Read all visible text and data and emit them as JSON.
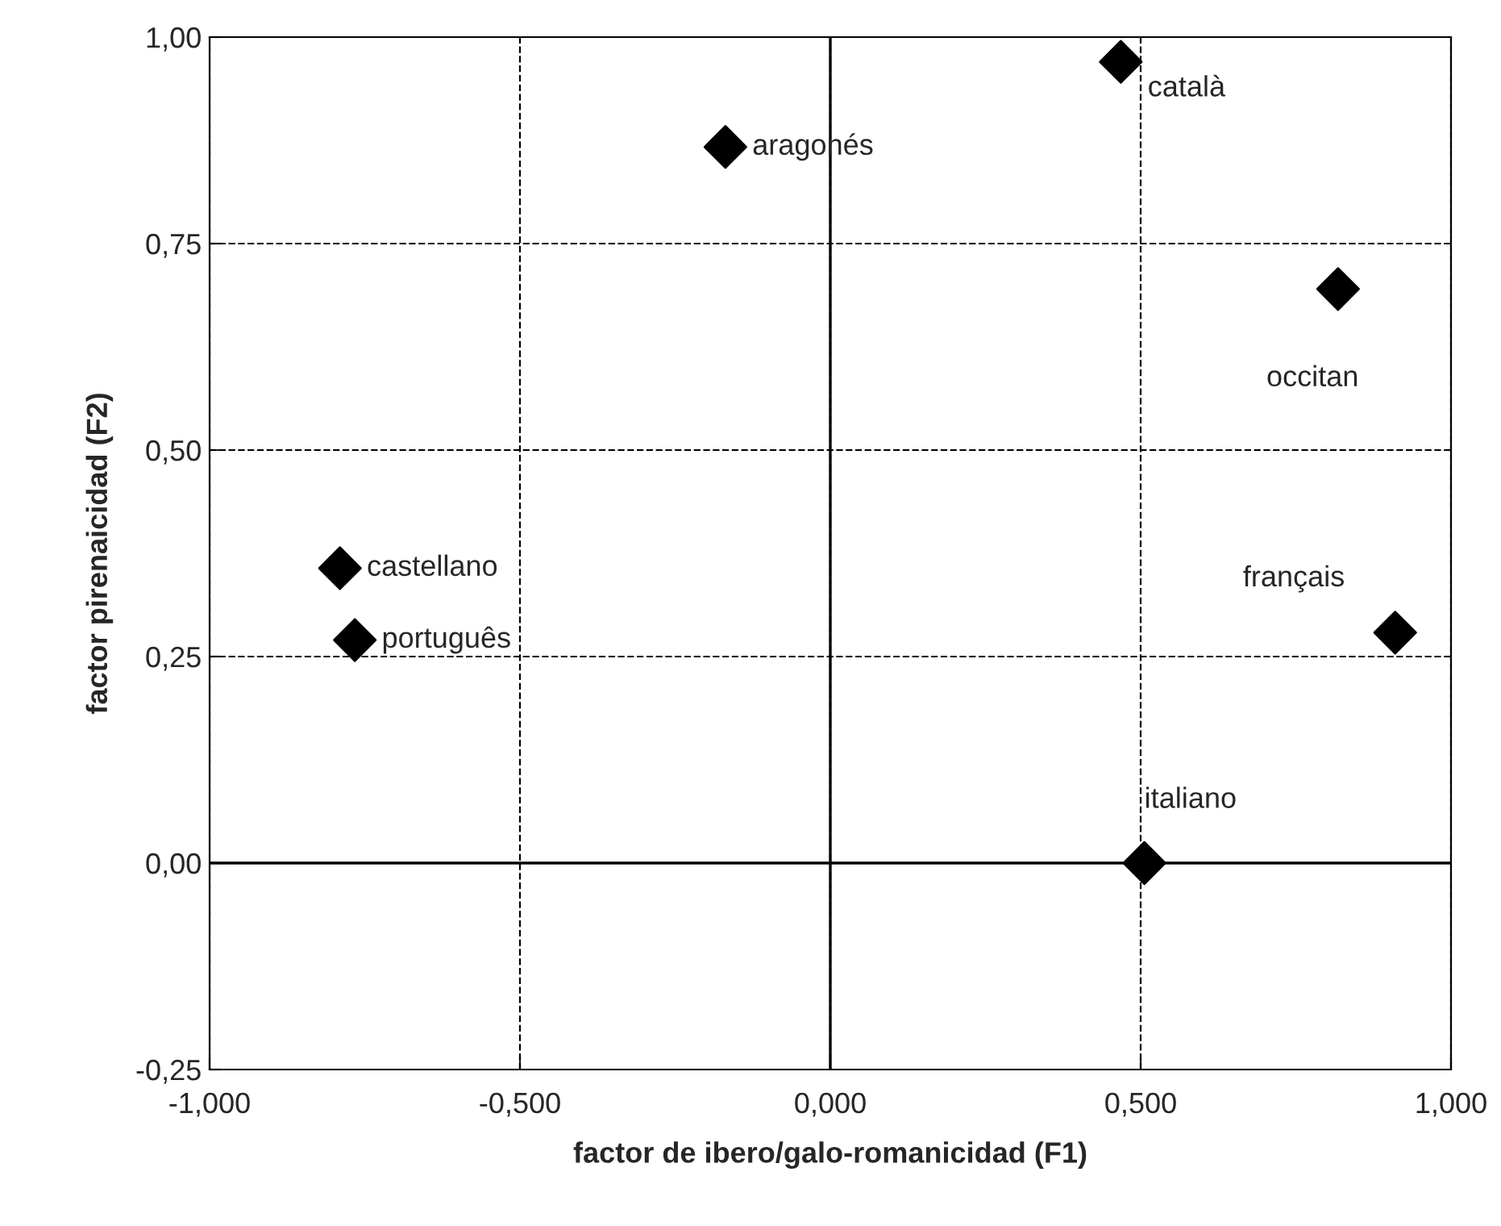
{
  "chart_data": {
    "type": "scatter",
    "xlabel": "factor de ibero/galo-romanicidad (F1)",
    "ylabel": "factor pirenaicidad (F2)",
    "x": [
      0.468,
      -0.169,
      0.818,
      0.91,
      -0.79,
      -0.766,
      0.506
    ],
    "series": [
      {
        "color": "#000000",
        "values": [
          0.97,
          0.867,
          0.695,
          0.279,
          0.357,
          0.27,
          0.0
        ]
      }
    ],
    "annotations": [
      {
        "text": "català",
        "x": 0.468,
        "y": 0.97
      },
      {
        "text": "aragonés",
        "x": -0.169,
        "y": 0.867
      },
      {
        "text": "occitan",
        "x": 0.818,
        "y": 0.695
      },
      {
        "text": "français",
        "x": 0.91,
        "y": 0.279
      },
      {
        "text": "castellano",
        "x": -0.79,
        "y": 0.357
      },
      {
        "text": "português",
        "x": -0.766,
        "y": 0.27
      },
      {
        "text": "italiano",
        "x": 0.506,
        "y": 0.0
      }
    ],
    "xlim": [
      -1,
      1
    ],
    "ylim": [
      -0.25,
      1
    ],
    "xticks": [
      {
        "value": -1,
        "label": "-1,000"
      },
      {
        "value": -0.5,
        "label": "-0,500"
      },
      {
        "value": 0,
        "label": "0,000"
      },
      {
        "value": 0.5,
        "label": "0,500"
      },
      {
        "value": 1,
        "label": "1,000"
      }
    ],
    "yticks": [
      {
        "value": -0.25,
        "label": "-0,25"
      },
      {
        "value": 0,
        "label": "0,00"
      },
      {
        "value": 0.25,
        "label": "0,25"
      },
      {
        "value": 0.5,
        "label": "0,50"
      },
      {
        "value": 0.75,
        "label": "0,75"
      },
      {
        "value": 1,
        "label": "1,00"
      }
    ],
    "grid": true,
    "marker": "diamond",
    "line_style": "dashed"
  }
}
